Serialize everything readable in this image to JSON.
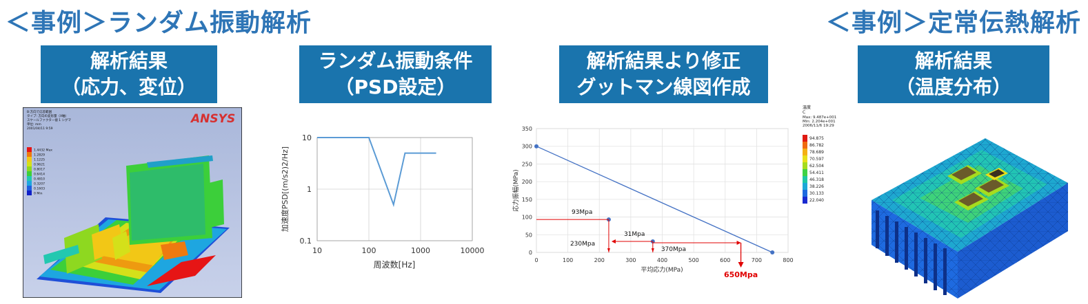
{
  "headings": {
    "left": "＜事例＞ランダム振動解析",
    "right": "＜事例＞定常伝熱解析"
  },
  "labels": {
    "l1": [
      "解析結果",
      "（応力、変位）"
    ],
    "l2": [
      "ランダム振動条件",
      "（PSD設定）"
    ],
    "l3": [
      "解析結果より修正",
      "グットマン線図作成"
    ],
    "l4": [
      "解析結果",
      "（温度分布）"
    ]
  },
  "ansys": {
    "logo": "ANSYS",
    "info": [
      "B:方向で応答範囲",
      "タイプ: 方向の変形量（X軸）",
      "スケールファクター値 1 シグマ",
      "単位: mm",
      "2001/04/11 9:59"
    ],
    "legend": [
      "1.4432 Max",
      "1.2829",
      "1.1225",
      "0.9621",
      "0.8017",
      "0.6414",
      "0.4810",
      "0.3207",
      "0.1603",
      "0 Min"
    ],
    "legend_colors": [
      "#e61515",
      "#ee7a10",
      "#f2c716",
      "#d4e01a",
      "#8ed820",
      "#3ccf3a",
      "#22c8b0",
      "#1ea6e0",
      "#1f5fe0",
      "#1020c8"
    ]
  },
  "psd_chart": {
    "type": "line",
    "xlabel": "周波数[Hz]",
    "ylabel": "加速度PSD[(m/s2)2/Hz]",
    "x_ticks": [
      "10",
      "100",
      "1000",
      "10000"
    ],
    "y_ticks": [
      "0.1",
      "1",
      "10"
    ],
    "xlim": [
      10,
      10000
    ],
    "ylim": [
      0.1,
      10
    ],
    "x": [
      10,
      100,
      300,
      500,
      2000
    ],
    "y": [
      10,
      10,
      0.5,
      5,
      5
    ],
    "color": "#5b9bd5"
  },
  "goodman_chart": {
    "type": "line",
    "xlabel": "平均応力(MPa)",
    "ylabel": "応力振幅(MPa)",
    "x_ticks": [
      "0",
      "100",
      "200",
      "300",
      "400",
      "500",
      "600",
      "700",
      "800"
    ],
    "y_ticks": [
      "0",
      "50",
      "100",
      "150",
      "200",
      "250",
      "300",
      "350"
    ],
    "xlim": [
      0,
      800
    ],
    "ylim": [
      0,
      350
    ],
    "line": {
      "x": [
        0,
        750
      ],
      "y": [
        300,
        0
      ]
    },
    "points": [
      {
        "x": 230,
        "y": 93
      },
      {
        "x": 370,
        "y": 31
      }
    ],
    "annotations": [
      "93Mpa",
      "230Mpa",
      "31Mpa",
      "370Mpa",
      "650Mpa"
    ],
    "line_color": "#4472c4",
    "accent_color": "#e00000"
  },
  "thermal": {
    "title": "温度",
    "unit": "C",
    "info": [
      "Max: 9.487e+001",
      "Min: 2.204e+001",
      "2006/11/6 19:29"
    ],
    "legend": [
      "94.875",
      "86.782",
      "78.689",
      "70.597",
      "62.504",
      "54.411",
      "46.318",
      "38.226",
      "30.133",
      "22.040"
    ],
    "legend_colors": [
      "#e01a12",
      "#f06a10",
      "#f4b014",
      "#e8e01a",
      "#a6dc1e",
      "#3ed244",
      "#1ec8a4",
      "#1ca8d8",
      "#1e6ae0",
      "#1a2ad0"
    ]
  }
}
